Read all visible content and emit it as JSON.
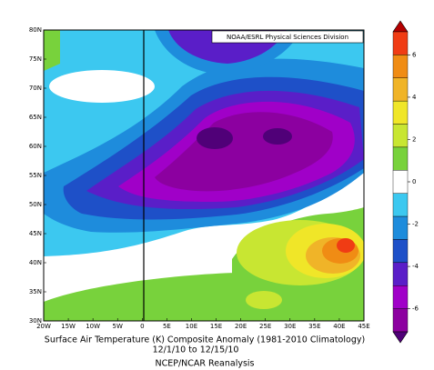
{
  "map": {
    "credit": "NOAA/ESRL Physical Sciences Division",
    "lat_labels": [
      "80N",
      "75N",
      "70N",
      "65N",
      "60N",
      "55N",
      "50N",
      "45N",
      "40N",
      "35N",
      "30N"
    ],
    "lon_labels": [
      "20W",
      "15W",
      "10W",
      "5W",
      "0",
      "5E",
      "10E",
      "15E",
      "20E",
      "25E",
      "30E",
      "35E",
      "40E",
      "45E"
    ],
    "caption": [
      "Surface Air Temperature (K) Composite Anomaly (1981-2010 Climatology)",
      "12/1/10  to 12/15/10",
      "NCEP/NCAR Reanalysis"
    ]
  },
  "colorbar": {
    "ticks": [
      6,
      4,
      2,
      0,
      -2,
      -4,
      -6
    ],
    "colors": [
      "#b40000",
      "#f03c14",
      "#f08c14",
      "#f0b428",
      "#f0e628",
      "#c8e632",
      "#78d23c",
      "#ffffff",
      "#3cc8f0",
      "#1e8cdc",
      "#1e50c8",
      "#5a1ec8",
      "#a000c8",
      "#8c00a0",
      "#500078"
    ]
  }
}
